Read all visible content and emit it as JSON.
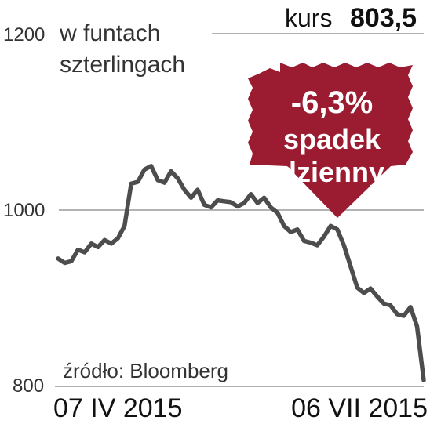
{
  "chart_data": {
    "type": "line",
    "unit_label": [
      "w funtach",
      "szterlingach"
    ],
    "header": {
      "label": "kurs",
      "value": "803,5"
    },
    "callout": {
      "lines": [
        "-6,3%",
        "spadek",
        "dzienny"
      ],
      "color": "#9b1b30"
    },
    "source": "źródło: Bloomberg",
    "line_color": "#4d4d4d",
    "ylim": [
      800,
      1200
    ],
    "yticks": [
      "1200",
      "1000",
      "800"
    ],
    "xticks": [
      "07 IV 2015",
      "06 VII 2015"
    ],
    "series": [
      {
        "values": [
          945,
          940,
          942,
          955,
          952,
          962,
          958,
          966,
          962,
          968,
          982,
          1030,
          1032,
          1046,
          1050,
          1034,
          1031,
          1044,
          1036,
          1023,
          1014,
          1023,
          1006,
          1003,
          1011,
          1010,
          1009,
          1004,
          1008,
          1018,
          1008,
          1014,
          1003,
          997,
          982,
          975,
          978,
          965,
          963,
          960,
          970,
          982,
          978,
          960,
          936,
          912,
          906,
          911,
          902,
          894,
          892,
          882,
          880,
          890,
          868,
          807
        ]
      }
    ]
  }
}
